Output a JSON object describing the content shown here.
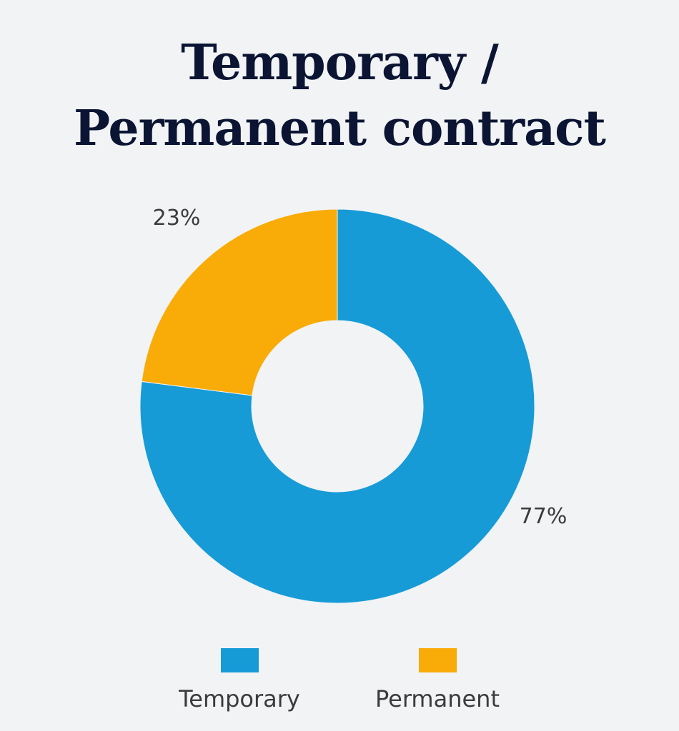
{
  "chart_data": {
    "type": "pie",
    "variant": "donut",
    "title_lines": [
      "Temporary /",
      "Permanent contract"
    ],
    "categories": [
      "Temporary",
      "Permanent"
    ],
    "values": [
      77,
      23
    ],
    "data_labels": [
      "77%",
      "23%"
    ],
    "colors": [
      "#169bd7",
      "#f9ab07"
    ],
    "legend_position": "bottom"
  }
}
